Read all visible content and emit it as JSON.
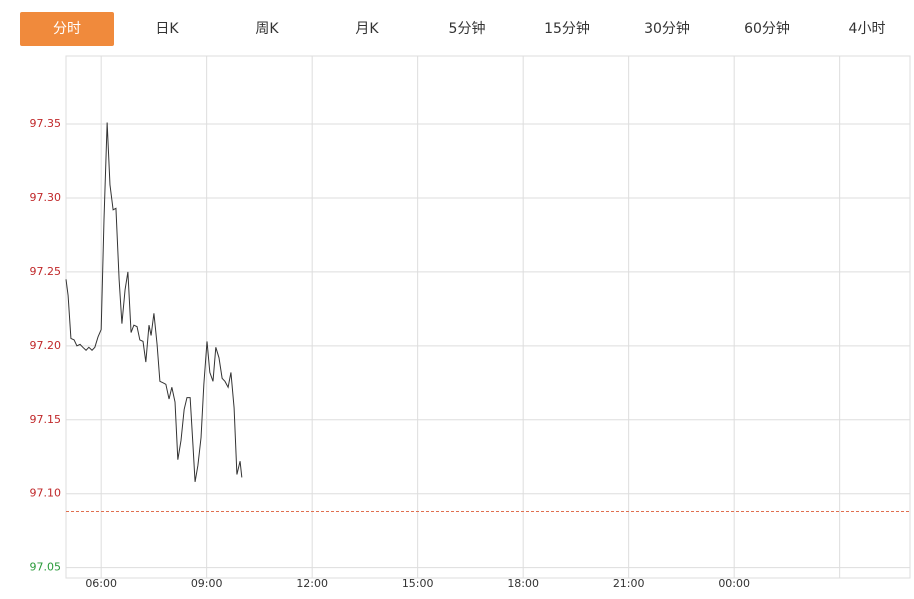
{
  "tabs": [
    "分时",
    "日K",
    "周K",
    "月K",
    "5分钟",
    "15分钟",
    "30分钟",
    "60分钟",
    "4小时"
  ],
  "active_tab": 0,
  "chart_data": {
    "type": "line",
    "x": [
      5.0,
      5.06,
      5.14,
      5.23,
      5.31,
      5.4,
      5.48,
      5.57,
      5.65,
      5.74,
      5.82,
      5.91,
      6.0,
      6.08,
      6.17,
      6.25,
      6.34,
      6.42,
      6.51,
      6.59,
      6.68,
      6.76,
      6.85,
      6.93,
      7.02,
      7.1,
      7.19,
      7.27,
      7.36,
      7.42,
      7.5,
      7.59,
      7.67,
      7.76,
      7.84,
      7.93,
      8.01,
      8.1,
      8.18,
      8.27,
      8.36,
      8.44,
      8.53,
      8.61,
      8.67,
      8.75,
      8.84,
      8.92,
      9.01,
      9.09,
      9.18,
      9.26,
      9.35,
      9.44,
      9.52,
      9.61,
      9.69,
      9.78,
      9.86,
      9.95,
      10.0
    ],
    "series": [
      {
        "color": "#333333",
        "values": [
          97.245,
          97.234,
          97.205,
          97.204,
          97.2,
          97.201,
          97.199,
          97.197,
          97.199,
          97.197,
          97.199,
          97.206,
          97.211,
          97.285,
          97.351,
          97.309,
          97.292,
          97.293,
          97.245,
          97.215,
          97.238,
          97.25,
          97.209,
          97.214,
          97.213,
          97.204,
          97.203,
          97.189,
          97.214,
          97.207,
          97.222,
          97.201,
          97.176,
          97.175,
          97.174,
          97.164,
          97.172,
          97.162,
          97.123,
          97.136,
          97.157,
          97.165,
          97.165,
          97.133,
          97.108,
          97.119,
          97.138,
          97.174,
          97.203,
          97.182,
          97.176,
          97.199,
          97.192,
          97.178,
          97.176,
          97.172,
          97.182,
          97.158,
          97.113,
          97.122,
          97.111
        ]
      }
    ],
    "xlim": [
      5,
      29
    ],
    "xticks": [
      {
        "value": 6,
        "label": "06:00"
      },
      {
        "value": 9,
        "label": "09:00"
      },
      {
        "value": 12,
        "label": "12:00"
      },
      {
        "value": 15,
        "label": "15:00"
      },
      {
        "value": 18,
        "label": "18:00"
      },
      {
        "value": 21,
        "label": "21:00"
      },
      {
        "value": 24,
        "label": "00:00"
      },
      {
        "value": 27,
        "label": null
      }
    ],
    "ylim": [
      97.043,
      97.396
    ],
    "yticks": [
      97.35,
      97.3,
      97.25,
      97.2,
      97.15,
      97.1,
      97.05
    ],
    "ytick_labels": [
      "97.35",
      "97.30",
      "97.25",
      "97.20",
      "97.15",
      "97.10",
      "97.05"
    ],
    "reference": 97.088,
    "reference_color": "#e07050",
    "up_color": "#c0282a",
    "down_color": "#2a9a3a",
    "grid": true
  }
}
